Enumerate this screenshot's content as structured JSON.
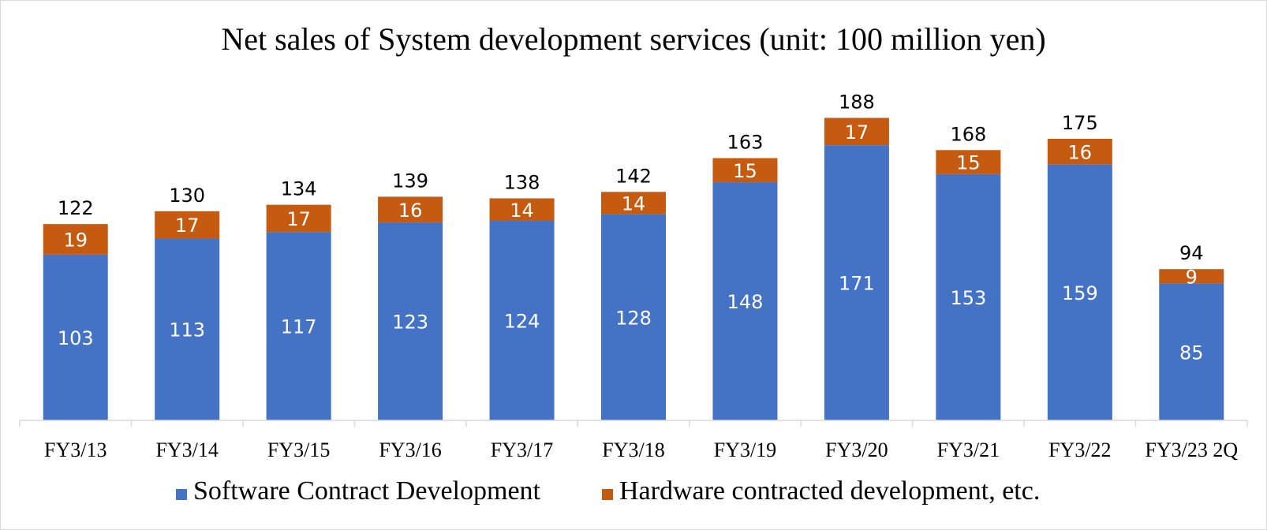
{
  "chart_data": {
    "type": "bar",
    "stacked": true,
    "title": "Net sales of System development services (unit: 100 million yen)",
    "xlabel": "",
    "ylabel": "",
    "categories": [
      "FY3/13",
      "FY3/14",
      "FY3/15",
      "FY3/16",
      "FY3/17",
      "FY3/18",
      "FY3/19",
      "FY3/20",
      "FY3/21",
      "FY3/22",
      "FY3/23 2Q"
    ],
    "series": [
      {
        "name": "Software Contract Development",
        "color": "#4472c4",
        "values": [
          103,
          113,
          117,
          123,
          124,
          128,
          148,
          171,
          153,
          159,
          85
        ]
      },
      {
        "name": "Hardware contracted development, etc.",
        "color": "#c55a11",
        "values": [
          19,
          17,
          17,
          16,
          14,
          14,
          15,
          17,
          15,
          16,
          9
        ]
      }
    ],
    "totals": [
      122,
      130,
      134,
      139,
      138,
      142,
      163,
      188,
      168,
      175,
      94
    ],
    "ylim": [
      0,
      200
    ],
    "grid": false,
    "legend": "bottom"
  }
}
